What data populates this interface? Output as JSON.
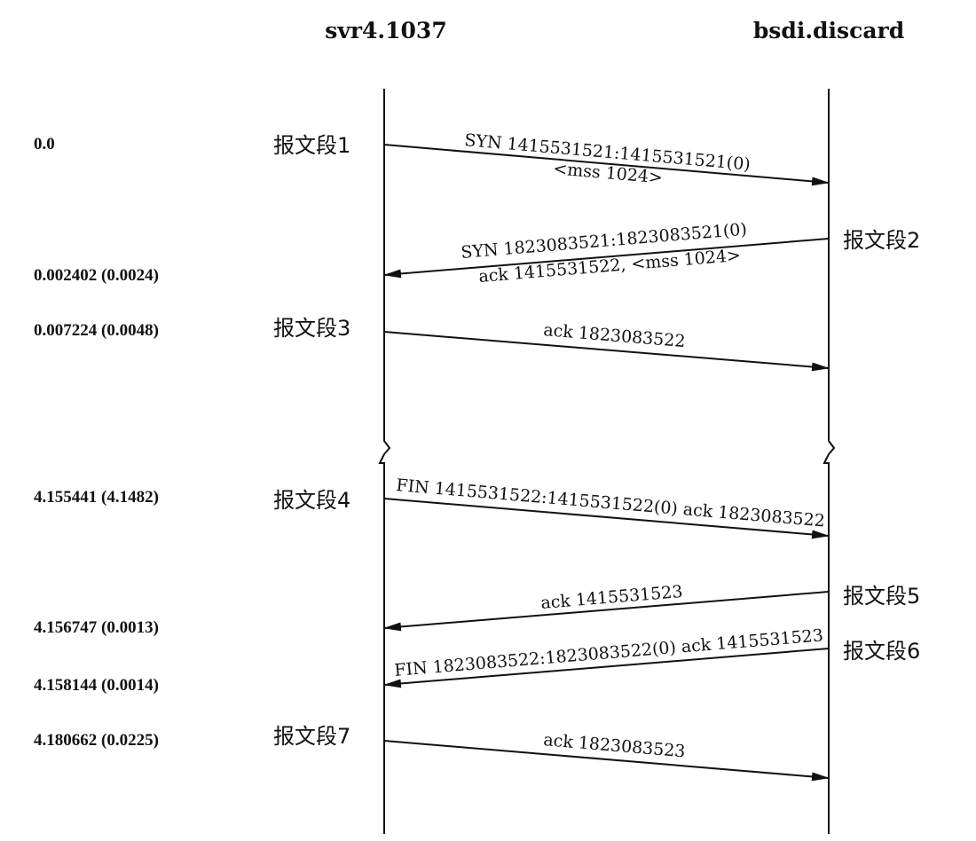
{
  "hosts": {
    "left": "svr4.1037",
    "right": "bsdi.discard"
  },
  "timestamps": [
    "0.0",
    "0.002402 (0.0024)",
    "0.007224 (0.0048)",
    "4.155441 (4.1482)",
    "4.156747 (0.0013)",
    "4.158144 (0.0014)",
    "4.180662 (0.0225)"
  ],
  "segments": [
    {
      "label": "报文段1",
      "line1": "SYN  1415531521:1415531521(0)",
      "line2": "<mss 1024>",
      "direction": "right"
    },
    {
      "label": "报文段2",
      "line1": "SYN  1823083521:1823083521(0)",
      "line2": "ack 1415531522, <mss 1024>",
      "direction": "left"
    },
    {
      "label": "报文段3",
      "line1": "ack 1823083522",
      "line2": "",
      "direction": "right"
    },
    {
      "label": "报文段4",
      "line1": "FIN  1415531522:1415531522(0) ack 1823083522",
      "line2": "",
      "direction": "right"
    },
    {
      "label": "报文段5",
      "line1": "ack 1415531523",
      "line2": "",
      "direction": "left"
    },
    {
      "label": "报文段6",
      "line1": "FIN  1823083522:1823083522(0) ack 1415531523",
      "line2": "",
      "direction": "left"
    },
    {
      "label": "报文段7",
      "line1": "ack 1823083523",
      "line2": "",
      "direction": "right"
    }
  ]
}
